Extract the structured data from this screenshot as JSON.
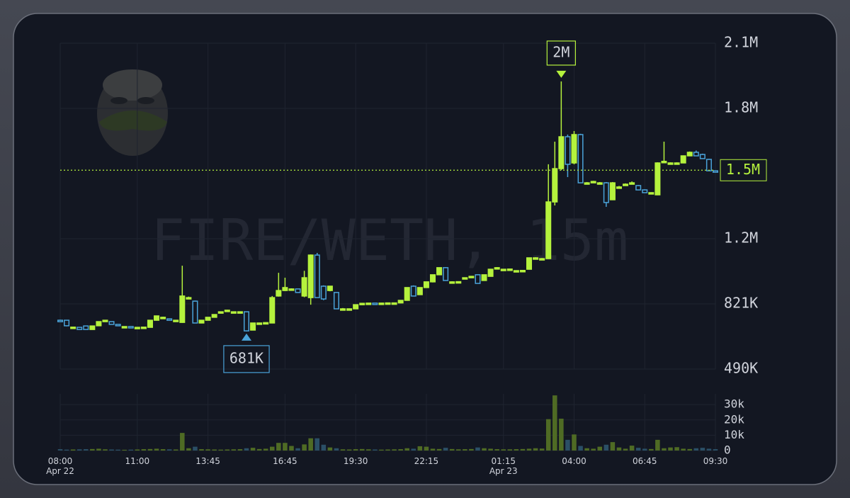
{
  "chart_data": {
    "type": "candlestick",
    "watermark": "FIRE/WETH, 15m",
    "categories": [
      "08:00",
      null,
      null,
      null,
      null,
      null,
      null,
      null,
      null,
      null,
      null,
      null,
      "11:00",
      null,
      null,
      null,
      null,
      null,
      null,
      null,
      null,
      null,
      null,
      "13:45",
      null,
      null,
      null,
      null,
      null,
      null,
      null,
      null,
      null,
      null,
      null,
      "16:45",
      null,
      null,
      null,
      null,
      null,
      null,
      null,
      null,
      null,
      null,
      "19:30",
      null,
      null,
      null,
      null,
      null,
      null,
      null,
      null,
      null,
      null,
      "22:15",
      null,
      null,
      null,
      null,
      null,
      null,
      null,
      null,
      null,
      null,
      null,
      "01:15",
      null,
      null,
      null,
      null,
      null,
      null,
      null,
      null,
      null,
      null,
      "04:00",
      null,
      null,
      null,
      null,
      null,
      null,
      null,
      null,
      null,
      null,
      "06:45",
      null,
      null,
      null,
      null,
      null,
      null,
      null,
      null,
      null,
      null,
      "09:30"
    ],
    "category_dates": [
      "Apr 22",
      null,
      null,
      null,
      null,
      null,
      null,
      null,
      null,
      null,
      null,
      null,
      null,
      null,
      null,
      null,
      null,
      null,
      null,
      null,
      null,
      null,
      null,
      null,
      null,
      null,
      null,
      null,
      null,
      null,
      null,
      null,
      null,
      null,
      null,
      null,
      null,
      null,
      null,
      null,
      null,
      null,
      null,
      null,
      null,
      null,
      null,
      null,
      null,
      null,
      null,
      null,
      null,
      null,
      null,
      null,
      null,
      null,
      null,
      null,
      null,
      null,
      null,
      null,
      null,
      null,
      null,
      null,
      null,
      "Apr 23",
      null,
      null,
      null,
      null,
      null,
      null,
      null,
      null,
      null,
      null,
      null,
      null,
      null,
      null,
      null,
      null,
      null,
      null,
      null,
      null,
      null,
      null,
      null,
      null,
      null,
      null,
      null,
      null,
      null,
      null,
      null,
      null,
      null
    ],
    "open": [
      738000,
      738000,
      702000,
      702000,
      709000,
      691000,
      710000,
      731000,
      731000,
      717000,
      706000,
      706000,
      702000,
      702000,
      702000,
      738000,
      753000,
      745000,
      738000,
      727000,
      853000,
      835000,
      724000,
      738000,
      753000,
      781000,
      789000,
      781000,
      781000,
      781000,
      688000,
      724000,
      724000,
      724000,
      861000,
      889000,
      897000,
      897000,
      861000,
      853000,
      1069000,
      911000,
      889000,
      879000,
      796000,
      796000,
      796000,
      824000,
      824000,
      825000,
      824000,
      825000,
      826000,
      826000,
      839000,
      911000,
      868000,
      904000,
      933000,
      969000,
      1005000,
      933000,
      933000,
      954000,
      961000,
      969000,
      940000,
      961000,
      1005000,
      997000,
      997000,
      990000,
      990000,
      997000,
      1055000,
      1051000,
      1051000,
      1339000,
      1508000,
      1670000,
      1537000,
      1681000,
      1436000,
      1443000,
      1436000,
      1436000,
      1350000,
      1415000,
      1429000,
      1436000,
      1422000,
      1400000,
      1386000,
      1375000,
      1545000,
      1537000,
      1537000,
      1537000,
      1573000,
      1591000,
      1580000,
      1555000,
      1497000
    ],
    "high": [
      741000,
      738000,
      704000,
      703000,
      710000,
      710000,
      731000,
      738000,
      733000,
      718000,
      707000,
      707000,
      703000,
      704000,
      738000,
      760000,
      756000,
      745000,
      740000,
      1015000,
      858000,
      838000,
      738000,
      753000,
      767000,
      783000,
      791000,
      783000,
      782000,
      783000,
      724000,
      726000,
      727000,
      861000,
      979000,
      954000,
      900000,
      898000,
      989000,
      1072000,
      1080000,
      915000,
      911000,
      881000,
      800000,
      798000,
      817000,
      826000,
      826000,
      826000,
      826000,
      827000,
      828000,
      839000,
      904000,
      915000,
      904000,
      933000,
      969000,
      1005000,
      1008000,
      936000,
      935000,
      956000,
      963000,
      971000,
      969000,
      997000,
      1008000,
      999000,
      999000,
      992000,
      992000,
      1055000,
      1058000,
      1054000,
      1530000,
      1645000,
      1951000,
      1681000,
      1699000,
      1685000,
      1440000,
      1446000,
      1440000,
      1440000,
      1440000,
      1420000,
      1433000,
      1443000,
      1425000,
      1403000,
      1388000,
      1540000,
      1645000,
      1540000,
      1540000,
      1575000,
      1595000,
      1600000,
      1584000,
      1558000,
      1499000
    ],
    "low": [
      734000,
      707000,
      700000,
      689000,
      689000,
      690000,
      708000,
      730000,
      716000,
      709000,
      705000,
      704000,
      701000,
      701000,
      701000,
      736000,
      752000,
      736000,
      737000,
      725000,
      850000,
      722000,
      722000,
      737000,
      752000,
      780000,
      788000,
      780000,
      780000,
      681000,
      686000,
      723000,
      723000,
      723000,
      858000,
      886000,
      895000,
      878000,
      855000,
      817000,
      853000,
      840000,
      885000,
      796000,
      794000,
      793000,
      794000,
      822000,
      823000,
      823000,
      823000,
      824000,
      825000,
      824000,
      837000,
      861000,
      866000,
      902000,
      930000,
      967000,
      939000,
      931000,
      931000,
      952000,
      959000,
      925000,
      938000,
      960000,
      1003000,
      995000,
      995000,
      988000,
      988000,
      995000,
      1053000,
      1049000,
      1049000,
      1321000,
      1500000,
      1465000,
      1530000,
      1436000,
      1430000,
      1440000,
      1433000,
      1314000,
      1348000,
      1412000,
      1427000,
      1434000,
      1398000,
      1385000,
      1384000,
      1373000,
      1542000,
      1535000,
      1535000,
      1535000,
      1571000,
      1571000,
      1557000,
      1497000,
      1490000
    ],
    "close": [
      736000,
      710000,
      703000,
      691000,
      691000,
      709000,
      731000,
      738000,
      717000,
      710000,
      706000,
      705000,
      702000,
      703000,
      738000,
      760000,
      753000,
      738000,
      738000,
      861000,
      853000,
      724000,
      738000,
      753000,
      767000,
      781000,
      789000,
      781000,
      781000,
      684000,
      724000,
      724000,
      726000,
      853000,
      889000,
      904000,
      897000,
      879000,
      954000,
      1069000,
      853000,
      846000,
      911000,
      796000,
      796000,
      796000,
      817000,
      824000,
      825000,
      824000,
      825000,
      826000,
      826000,
      839000,
      904000,
      861000,
      904000,
      933000,
      969000,
      1005000,
      940000,
      933000,
      934000,
      954000,
      961000,
      925000,
      969000,
      997000,
      1005000,
      997000,
      998000,
      990000,
      991000,
      1055000,
      1055000,
      1051000,
      1339000,
      1508000,
      1670000,
      1530000,
      1681000,
      1436000,
      1436000,
      1443000,
      1436000,
      1336000,
      1436000,
      1415000,
      1429000,
      1436000,
      1400000,
      1386000,
      1386000,
      1537000,
      1545000,
      1537000,
      1537000,
      1573000,
      1591000,
      1573000,
      1559000,
      1497000,
      1495000
    ],
    "volume": [
      900,
      600,
      700,
      800,
      900,
      1000,
      1200,
      800,
      700,
      600,
      500,
      600,
      700,
      900,
      1000,
      1200,
      900,
      800,
      700,
      11500,
      1500,
      2500,
      900,
      800,
      700,
      600,
      700,
      800,
      900,
      1500,
      1800,
      1000,
      1200,
      2500,
      5000,
      5000,
      3000,
      1500,
      4000,
      8000,
      8000,
      3800,
      2000,
      1500,
      800,
      700,
      900,
      1000,
      800,
      700,
      600,
      700,
      800,
      900,
      1500,
      1200,
      2800,
      2500,
      1200,
      1000,
      1800,
      1000,
      800,
      900,
      1000,
      2000,
      1500,
      1200,
      900,
      800,
      800,
      900,
      1000,
      1200,
      1500,
      1300,
      20500,
      36000,
      20800,
      7000,
      10500,
      3000,
      1500,
      1200,
      2500,
      3800,
      5500,
      2000,
      1200,
      3200,
      1800,
      1200,
      1000,
      7000,
      1500,
      2000,
      2200,
      1200,
      1000,
      1500,
      1800,
      1200,
      900
    ],
    "up_color": "#b5f23d",
    "down_color": "#4aa3d9",
    "ylim": [
      490000,
      2145000
    ],
    "yticks": [
      {
        "value": 490000,
        "label": "490K"
      },
      {
        "value": 821000,
        "label": "821K"
      },
      {
        "value": 1152000,
        "label": "1.2M"
      },
      {
        "value": 1814000,
        "label": "1.8M"
      },
      {
        "value": 2145000,
        "label": "2.1M"
      }
    ],
    "volume_ylim": [
      0,
      37000
    ],
    "volume_yticks": [
      0,
      {
        "value": 10000,
        "label": "10k"
      },
      {
        "value": 20000,
        "label": "20k"
      },
      {
        "value": 30000,
        "label": "30k"
      }
    ],
    "current_price": {
      "value": 1500000,
      "label": "1.5M"
    },
    "high_marker": {
      "value": 1951000,
      "label": "2M"
    },
    "low_marker": {
      "value": 681000,
      "label": "681K"
    },
    "grid": true
  }
}
